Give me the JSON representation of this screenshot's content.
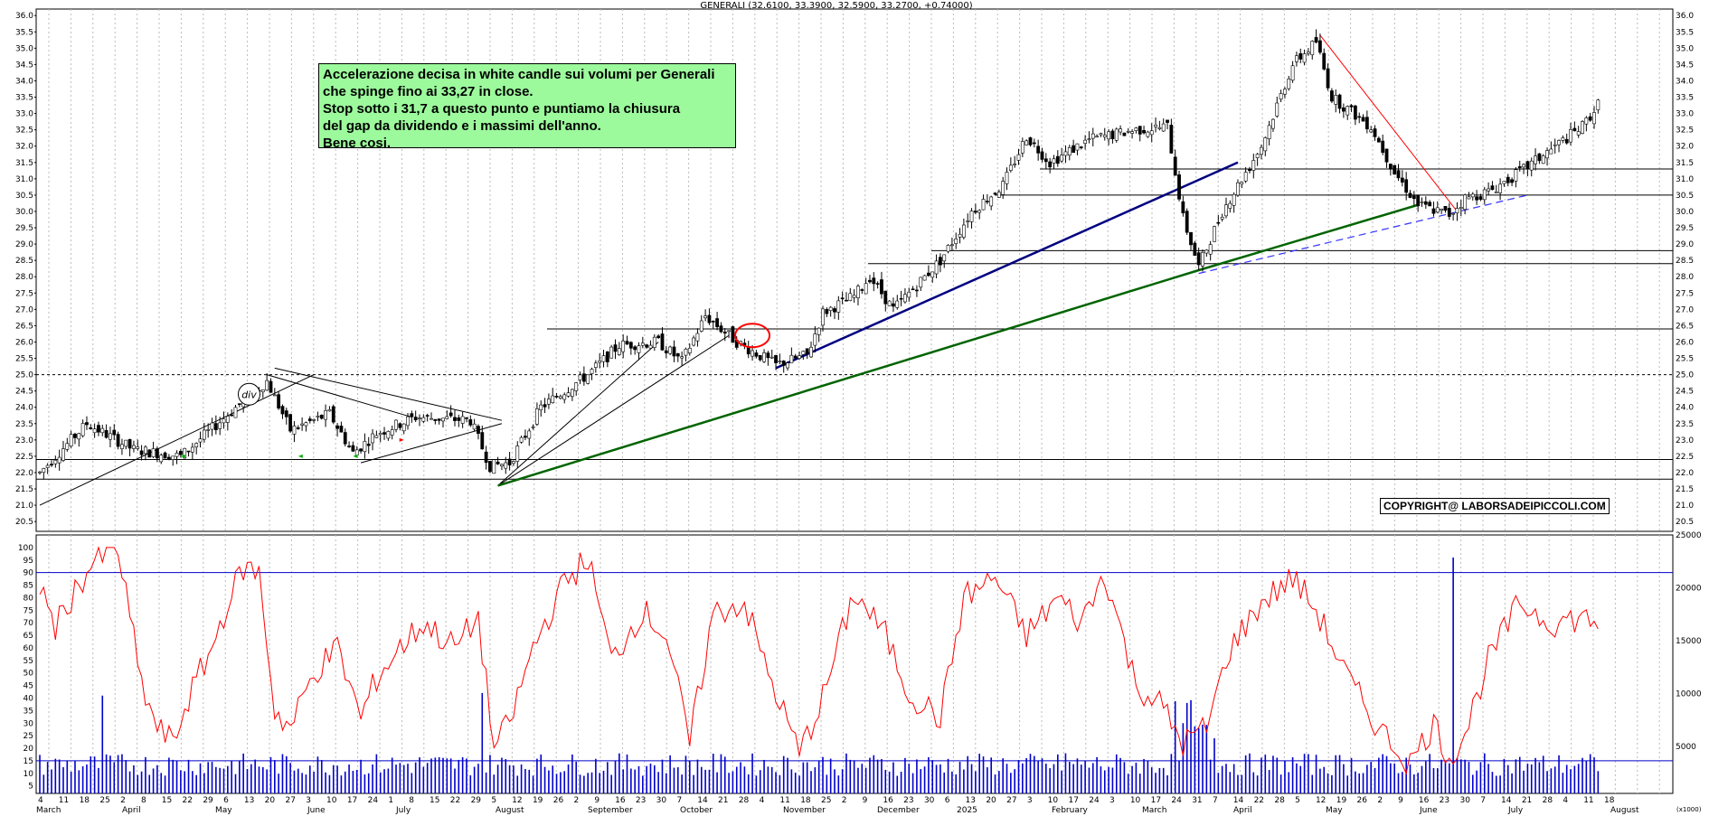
{
  "chart_data": {
    "type": "candlestick",
    "title": "GENERALI (32.6100, 33.3900, 32.5900, 33.2700, +0.74000)",
    "price_axis": {
      "ylim": [
        20.2,
        36.2
      ],
      "ticks": [
        "20.5",
        "21.0",
        "21.5",
        "22.0",
        "22.5",
        "23.0",
        "23.5",
        "24.0",
        "24.5",
        "25.0",
        "25.5",
        "26.0",
        "26.5",
        "27.0",
        "27.5",
        "28.0",
        "28.5",
        "29.0",
        "29.5",
        "30.0",
        "30.5",
        "31.0",
        "31.5",
        "32.0",
        "32.5",
        "33.0",
        "33.5",
        "34.0",
        "34.5",
        "35.0",
        "35.5",
        "36.0"
      ]
    },
    "oscillator_axis": {
      "ylim": [
        2,
        105
      ],
      "ticks": [
        "5",
        "10",
        "15",
        "20",
        "25",
        "30",
        "35",
        "40",
        "45",
        "50",
        "55",
        "60",
        "65",
        "70",
        "75",
        "80",
        "85",
        "90",
        "95",
        "100"
      ],
      "reference_lines": [
        90,
        15
      ]
    },
    "volume_axis": {
      "ticks": [
        "5000",
        "10000",
        "15000",
        "20000",
        "25000"
      ],
      "unit_label": "(x1000)"
    },
    "month_labels": [
      "March",
      "April",
      "May",
      "June",
      "July",
      "August",
      "September",
      "October",
      "November",
      "December",
      "2025",
      "February",
      "March",
      "April",
      "May",
      "June",
      "July",
      "August"
    ],
    "day_labels": [
      "4",
      "11",
      "18",
      "25",
      "2",
      "8",
      "15",
      "22",
      "29",
      "6",
      "13",
      "20",
      "27",
      "3",
      "10",
      "17",
      "24",
      "1",
      "8",
      "15",
      "22",
      "29",
      "5",
      "12",
      "19",
      "26",
      "2",
      "9",
      "16",
      "23",
      "30",
      "7",
      "14",
      "21",
      "28",
      "4",
      "11",
      "18",
      "25",
      "2",
      "9",
      "16",
      "23",
      "30",
      "6",
      "13",
      "20",
      "27",
      "3",
      "10",
      "17",
      "24",
      "3",
      "10",
      "17",
      "24",
      "31",
      "7",
      "14",
      "22",
      "28",
      "5",
      "12",
      "19",
      "26",
      "2",
      "9",
      "16",
      "23",
      "30",
      "7",
      "14",
      "21",
      "28",
      "4",
      "11",
      "18"
    ],
    "price_waypoints": [
      [
        0,
        22.0
      ],
      [
        12,
        23.5
      ],
      [
        24,
        22.7
      ],
      [
        36,
        22.5
      ],
      [
        52,
        24.2
      ],
      [
        58,
        24.8
      ],
      [
        64,
        23.3
      ],
      [
        74,
        23.8
      ],
      [
        80,
        22.6
      ],
      [
        86,
        23.2
      ],
      [
        96,
        23.7
      ],
      [
        110,
        23.6
      ],
      [
        115,
        22.2
      ],
      [
        120,
        22.3
      ],
      [
        128,
        24.0
      ],
      [
        140,
        25.0
      ],
      [
        148,
        25.9
      ],
      [
        158,
        26.0
      ],
      [
        164,
        25.4
      ],
      [
        170,
        26.8
      ],
      [
        178,
        26.0
      ],
      [
        188,
        25.3
      ],
      [
        196,
        25.6
      ],
      [
        200,
        26.9
      ],
      [
        208,
        27.4
      ],
      [
        212,
        28.0
      ],
      [
        218,
        27.0
      ],
      [
        230,
        28.5
      ],
      [
        238,
        30.0
      ],
      [
        246,
        30.8
      ],
      [
        252,
        32.3
      ],
      [
        258,
        31.5
      ],
      [
        268,
        32.2
      ],
      [
        280,
        32.5
      ],
      [
        288,
        32.6
      ],
      [
        292,
        29.8
      ],
      [
        296,
        28.3
      ],
      [
        302,
        30.0
      ],
      [
        312,
        32.0
      ],
      [
        320,
        34.5
      ],
      [
        326,
        35.2
      ],
      [
        330,
        33.5
      ],
      [
        340,
        32.6
      ],
      [
        346,
        31.2
      ],
      [
        352,
        30.2
      ],
      [
        360,
        29.9
      ],
      [
        364,
        30.4
      ],
      [
        370,
        30.6
      ],
      [
        378,
        31.2
      ],
      [
        386,
        31.9
      ],
      [
        394,
        32.6
      ],
      [
        398,
        33.27
      ]
    ],
    "oscillator_waypoints": [
      [
        0,
        85
      ],
      [
        4,
        68
      ],
      [
        8,
        80
      ],
      [
        14,
        95
      ],
      [
        20,
        99
      ],
      [
        26,
        45
      ],
      [
        30,
        28
      ],
      [
        34,
        22
      ],
      [
        38,
        40
      ],
      [
        44,
        60
      ],
      [
        48,
        78
      ],
      [
        52,
        92
      ],
      [
        56,
        90
      ],
      [
        60,
        35
      ],
      [
        64,
        28
      ],
      [
        70,
        50
      ],
      [
        76,
        60
      ],
      [
        82,
        32
      ],
      [
        86,
        48
      ],
      [
        92,
        60
      ],
      [
        98,
        70
      ],
      [
        106,
        60
      ],
      [
        112,
        72
      ],
      [
        116,
        20
      ],
      [
        120,
        30
      ],
      [
        126,
        60
      ],
      [
        134,
        86
      ],
      [
        140,
        96
      ],
      [
        146,
        55
      ],
      [
        154,
        75
      ],
      [
        160,
        65
      ],
      [
        166,
        22
      ],
      [
        172,
        74
      ],
      [
        180,
        78
      ],
      [
        186,
        50
      ],
      [
        194,
        18
      ],
      [
        200,
        40
      ],
      [
        208,
        82
      ],
      [
        216,
        65
      ],
      [
        222,
        42
      ],
      [
        230,
        32
      ],
      [
        236,
        80
      ],
      [
        244,
        88
      ],
      [
        252,
        65
      ],
      [
        260,
        80
      ],
      [
        266,
        70
      ],
      [
        272,
        90
      ],
      [
        280,
        45
      ],
      [
        286,
        38
      ],
      [
        292,
        22
      ],
      [
        298,
        28
      ],
      [
        304,
        60
      ],
      [
        312,
        78
      ],
      [
        320,
        88
      ],
      [
        326,
        75
      ],
      [
        334,
        48
      ],
      [
        342,
        28
      ],
      [
        350,
        14
      ],
      [
        356,
        30
      ],
      [
        360,
        16
      ],
      [
        364,
        26
      ],
      [
        370,
        55
      ],
      [
        378,
        78
      ],
      [
        386,
        70
      ],
      [
        394,
        72
      ],
      [
        398,
        70
      ]
    ],
    "volume_spikes": [
      [
        16,
        41
      ],
      [
        113,
        42
      ],
      [
        262,
        18
      ],
      [
        292,
        30
      ],
      [
        296,
        28
      ],
      [
        300,
        24
      ],
      [
        361,
        50
      ]
    ],
    "horizontal_levels": [
      30.5,
      31.3,
      28.8,
      28.4,
      26.4,
      22.4,
      21.8
    ],
    "dashed_level": 25.0
  },
  "annotation_lines": [
    "Accelerazione decisa in white candle sui volumi per Generali",
    "che spinge fino ai 33,27 in close.",
    "Stop sotto i 31,7 a questo punto e puntiamo la chiusura",
    "del gap da dividendo e i massimi dell'anno.",
    "Bene cosi."
  ],
  "div_label": "div",
  "copyright": "COPYRIGHT@ LABORSADEIPICCOLI.COM",
  "colors": {
    "up_candle": "#ffffff",
    "down_candle": "#000000",
    "oscillator": "#ff0000",
    "volume": "#0000cc",
    "reference_line": "#0000cc",
    "green_trendline": "#006400",
    "blue_trendline": "#000080",
    "red_trendline": "#ff0000",
    "annotation_bg": "#9cfa9c"
  }
}
